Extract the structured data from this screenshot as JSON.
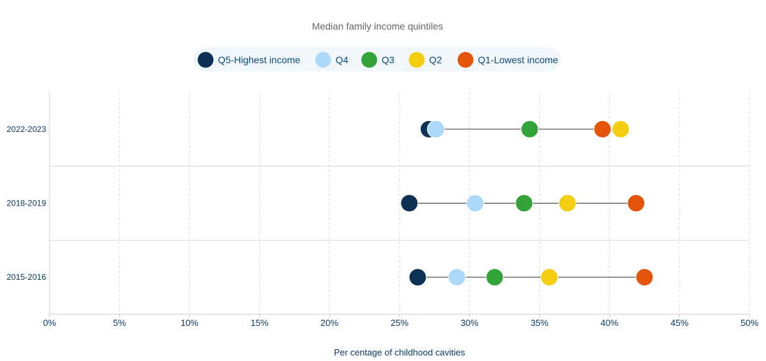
{
  "chart_data": {
    "type": "dumbbell",
    "title": "Median family income quintiles",
    "xlabel": "Per centage of childhood cavities",
    "ylabel": "",
    "xlim": [
      0,
      50
    ],
    "x_ticks": [
      0,
      5,
      10,
      15,
      20,
      25,
      30,
      35,
      40,
      45,
      50
    ],
    "x_tick_labels": [
      "0%",
      "5%",
      "10%",
      "15%",
      "20%",
      "25%",
      "30%",
      "35%",
      "40%",
      "45%",
      "50%"
    ],
    "grid": "vertical-dashed",
    "legend_position": "top-center",
    "categories": [
      "2022-2023",
      "2018-2019",
      "2015-2016"
    ],
    "series": [
      {
        "name": "Q5-Highest income",
        "color": "#0d3154",
        "values": [
          27.1,
          25.7,
          26.3
        ]
      },
      {
        "name": "Q4",
        "color": "#acd8fa",
        "values": [
          27.6,
          30.4,
          29.1
        ]
      },
      {
        "name": "Q3",
        "color": "#32a339",
        "values": [
          34.3,
          33.9,
          31.8
        ]
      },
      {
        "name": "Q2",
        "color": "#f4ce10",
        "values": [
          40.8,
          37.0,
          35.7
        ]
      },
      {
        "name": "Q1-Lowest income",
        "color": "#e4540a",
        "values": [
          39.5,
          41.9,
          42.5
        ]
      }
    ]
  }
}
